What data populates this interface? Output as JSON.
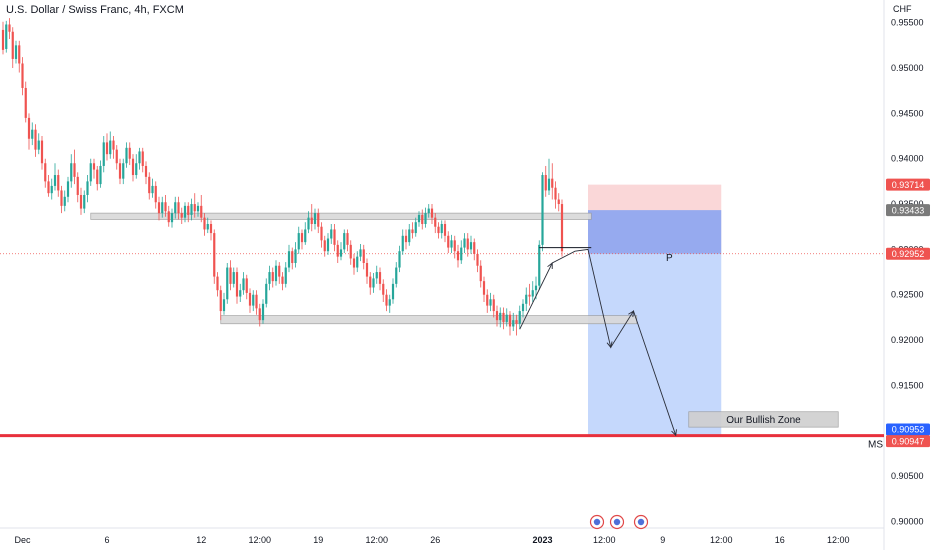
{
  "header": {
    "title": "U.S. Dollar / Swiss Franc, 4h, FXCM"
  },
  "currency_label": "CHF",
  "annotations": {
    "p_label": "P",
    "zone_label": "Our Bullish Zone",
    "ms_label": "MS"
  },
  "colors": {
    "up": "#26a69a",
    "down": "#ef5350",
    "stop_zone": "#f8c9cb",
    "target_zone": "#bbd1fc",
    "target_zone_dark": "#7d9ff5",
    "level_line": "#e8303c",
    "box_fill": "#d9d9d9",
    "box_stroke": "#9a9a9a"
  },
  "chart_data": {
    "type": "candlestick",
    "title": "U.S. Dollar / Swiss Franc, 4h, FXCM",
    "price_axis": {
      "unit": "CHF",
      "ylim": [
        0.8995,
        0.9575
      ],
      "ticks": [
        "0.95500",
        "0.95000",
        "0.94500",
        "0.94000",
        "0.93500",
        "0.93000",
        "0.92500",
        "0.92000",
        "0.91500",
        "0.91000",
        "0.90500",
        "0.90000"
      ]
    },
    "time_axis": {
      "ticks": [
        {
          "label": "Dec",
          "bar": 6
        },
        {
          "label": "6",
          "bar": 32
        },
        {
          "label": "12",
          "bar": 61
        },
        {
          "label": "12:00",
          "bar": 79
        },
        {
          "label": "19",
          "bar": 97
        },
        {
          "label": "12:00",
          "bar": 115
        },
        {
          "label": "26",
          "bar": 133
        },
        {
          "label": "2023",
          "bar": 166,
          "bold": true
        },
        {
          "label": "12:00",
          "bar": 185
        },
        {
          "label": "9",
          "bar": 203
        },
        {
          "label": "12:00",
          "bar": 221
        },
        {
          "label": "16",
          "bar": 239
        },
        {
          "label": "12:00",
          "bar": 257
        }
      ]
    },
    "price_tags": [
      {
        "label": "0.93714",
        "value": 0.93714,
        "color": "#ef5350"
      },
      {
        "label": "0.93433",
        "value": 0.93433,
        "color": "#7a7a7a"
      },
      {
        "label": "0.92952",
        "value": 0.92952,
        "color": "#ef5350"
      },
      {
        "label": "0.90953",
        "value": 0.90953,
        "color": "#2962ff"
      },
      {
        "label": "0.90947",
        "value": 0.90947,
        "color": "#ef5350"
      }
    ],
    "levels": [
      {
        "name": "MS",
        "value": 0.90947
      }
    ],
    "position": {
      "entry": 0.92952,
      "stop": 0.93714,
      "target": 0.90953,
      "reached": 0.93433,
      "start_bar": 180,
      "end_bar": 221
    },
    "zones": [
      {
        "name": "resistance",
        "from": 0.934,
        "to": 0.9333,
        "start_bar": 27,
        "end_bar": 181
      },
      {
        "name": "support",
        "from": 0.9227,
        "to": 0.9218,
        "start_bar": 67,
        "end_bar": 195
      },
      {
        "name": "Our Bullish Zone",
        "from": 0.9121,
        "to": 0.9104,
        "start_bar": 211,
        "end_bar": 257
      }
    ],
    "candles": [
      [
        0.9542,
        0.952,
        0.9551,
        0.9515
      ],
      [
        0.9521,
        0.9548,
        0.9552,
        0.9517
      ],
      [
        0.9548,
        0.954,
        0.9555,
        0.9532
      ],
      [
        0.954,
        0.951,
        0.9545,
        0.95
      ],
      [
        0.951,
        0.9525,
        0.953,
        0.9505
      ],
      [
        0.9525,
        0.9505,
        0.953,
        0.9495
      ],
      [
        0.9505,
        0.9478,
        0.9512,
        0.947
      ],
      [
        0.9478,
        0.9445,
        0.9485,
        0.944
      ],
      [
        0.9445,
        0.9422,
        0.945,
        0.941
      ],
      [
        0.9422,
        0.9432,
        0.944,
        0.9415
      ],
      [
        0.9432,
        0.941,
        0.9438,
        0.9402
      ],
      [
        0.941,
        0.942,
        0.9428,
        0.9405
      ],
      [
        0.942,
        0.9395,
        0.9425,
        0.9388
      ],
      [
        0.9395,
        0.9375,
        0.94,
        0.9368
      ],
      [
        0.9375,
        0.9362,
        0.9382,
        0.9358
      ],
      [
        0.9362,
        0.937,
        0.9378,
        0.9355
      ],
      [
        0.937,
        0.9382,
        0.9395,
        0.9365
      ],
      [
        0.9382,
        0.9365,
        0.9388,
        0.9358
      ],
      [
        0.9365,
        0.9348,
        0.937,
        0.934
      ],
      [
        0.9348,
        0.9358,
        0.9365,
        0.9342
      ],
      [
        0.9358,
        0.9375,
        0.938,
        0.9352
      ],
      [
        0.9375,
        0.9395,
        0.9405,
        0.9368
      ],
      [
        0.9395,
        0.938,
        0.941,
        0.9372
      ],
      [
        0.938,
        0.936,
        0.9385,
        0.9352
      ],
      [
        0.936,
        0.9345,
        0.9368,
        0.9338
      ],
      [
        0.9345,
        0.936,
        0.9365,
        0.934
      ],
      [
        0.936,
        0.9375,
        0.9382,
        0.9352
      ],
      [
        0.9375,
        0.9395,
        0.94,
        0.937
      ],
      [
        0.9395,
        0.9388,
        0.94,
        0.9378
      ],
      [
        0.9388,
        0.9372,
        0.9392,
        0.9365
      ],
      [
        0.9372,
        0.9392,
        0.9398,
        0.9368
      ],
      [
        0.9392,
        0.9418,
        0.9425,
        0.9385
      ],
      [
        0.9418,
        0.9405,
        0.9428,
        0.9398
      ],
      [
        0.9405,
        0.942,
        0.943,
        0.94
      ],
      [
        0.942,
        0.941,
        0.9425,
        0.94
      ],
      [
        0.941,
        0.9395,
        0.9415,
        0.9388
      ],
      [
        0.9395,
        0.9378,
        0.94,
        0.9372
      ],
      [
        0.9378,
        0.9395,
        0.94,
        0.9372
      ],
      [
        0.9395,
        0.9412,
        0.9418,
        0.939
      ],
      [
        0.9412,
        0.94,
        0.9418,
        0.9393
      ],
      [
        0.94,
        0.9382,
        0.9405,
        0.9375
      ],
      [
        0.9382,
        0.9395,
        0.9405,
        0.9378
      ],
      [
        0.9395,
        0.9408,
        0.9412,
        0.9388
      ],
      [
        0.9408,
        0.9392,
        0.9412,
        0.9385
      ],
      [
        0.9392,
        0.938,
        0.9397,
        0.9372
      ],
      [
        0.938,
        0.9362,
        0.9385,
        0.9355
      ],
      [
        0.9362,
        0.937,
        0.9378,
        0.9357
      ],
      [
        0.937,
        0.9352,
        0.9375,
        0.9345
      ],
      [
        0.9352,
        0.934,
        0.9358,
        0.9332
      ],
      [
        0.934,
        0.9352,
        0.9358,
        0.9335
      ],
      [
        0.9352,
        0.9342,
        0.936,
        0.9336
      ],
      [
        0.9342,
        0.933,
        0.9348,
        0.9325
      ],
      [
        0.933,
        0.934,
        0.9345,
        0.9324
      ],
      [
        0.934,
        0.9352,
        0.9358,
        0.9334
      ],
      [
        0.9352,
        0.934,
        0.9358,
        0.9333
      ],
      [
        0.934,
        0.9335,
        0.9346,
        0.9328
      ],
      [
        0.9335,
        0.9348,
        0.9352,
        0.933
      ],
      [
        0.9348,
        0.9338,
        0.9352,
        0.933
      ],
      [
        0.9338,
        0.935,
        0.9356,
        0.9332
      ],
      [
        0.935,
        0.9342,
        0.9362,
        0.9335
      ],
      [
        0.9342,
        0.9348,
        0.9352,
        0.9336
      ],
      [
        0.9348,
        0.9335,
        0.936,
        0.933
      ],
      [
        0.9335,
        0.9322,
        0.934,
        0.9315
      ],
      [
        0.9322,
        0.9328,
        0.9335,
        0.9318
      ],
      [
        0.9328,
        0.9318,
        0.9332,
        0.931
      ],
      [
        0.9318,
        0.927,
        0.9322,
        0.9262
      ],
      [
        0.927,
        0.9255,
        0.9275,
        0.9248
      ],
      [
        0.9255,
        0.9232,
        0.926,
        0.9222
      ],
      [
        0.9232,
        0.9245,
        0.9252,
        0.9228
      ],
      [
        0.9245,
        0.928,
        0.9285,
        0.924
      ],
      [
        0.928,
        0.9262,
        0.9288,
        0.9255
      ],
      [
        0.9262,
        0.9275,
        0.928,
        0.9258
      ],
      [
        0.9275,
        0.9248,
        0.928,
        0.924
      ],
      [
        0.9248,
        0.9255,
        0.9262,
        0.9242
      ],
      [
        0.9255,
        0.9268,
        0.9275,
        0.925
      ],
      [
        0.9268,
        0.9252,
        0.9272,
        0.9245
      ],
      [
        0.9252,
        0.9238,
        0.9257,
        0.923
      ],
      [
        0.9238,
        0.925,
        0.9255,
        0.9232
      ],
      [
        0.925,
        0.9235,
        0.9255,
        0.9228
      ],
      [
        0.9235,
        0.9222,
        0.924,
        0.9215
      ],
      [
        0.9222,
        0.924,
        0.9245,
        0.9218
      ],
      [
        0.924,
        0.9262,
        0.9268,
        0.9236
      ],
      [
        0.9262,
        0.9275,
        0.9282,
        0.9255
      ],
      [
        0.9275,
        0.9265,
        0.928,
        0.9258
      ],
      [
        0.9265,
        0.9282,
        0.9288,
        0.926
      ],
      [
        0.9282,
        0.927,
        0.9286,
        0.9262
      ],
      [
        0.927,
        0.9262,
        0.9275,
        0.9255
      ],
      [
        0.9262,
        0.928,
        0.9286,
        0.9258
      ],
      [
        0.928,
        0.9298,
        0.9305,
        0.9275
      ],
      [
        0.9298,
        0.9285,
        0.9302,
        0.9278
      ],
      [
        0.9285,
        0.93,
        0.9308,
        0.928
      ],
      [
        0.93,
        0.9318,
        0.9325,
        0.9295
      ],
      [
        0.9318,
        0.9308,
        0.9322,
        0.93
      ],
      [
        0.9308,
        0.9322,
        0.933,
        0.9305
      ],
      [
        0.9322,
        0.9335,
        0.9342,
        0.9318
      ],
      [
        0.9335,
        0.9328,
        0.935,
        0.932
      ],
      [
        0.9328,
        0.934,
        0.9345,
        0.9322
      ],
      [
        0.934,
        0.9325,
        0.9345,
        0.9318
      ],
      [
        0.9325,
        0.931,
        0.933,
        0.9302
      ],
      [
        0.931,
        0.9298,
        0.9315,
        0.9292
      ],
      [
        0.9298,
        0.9312,
        0.9318,
        0.9294
      ],
      [
        0.9312,
        0.9322,
        0.9328,
        0.9306
      ],
      [
        0.9322,
        0.9305,
        0.9328,
        0.9298
      ],
      [
        0.9305,
        0.9292,
        0.931,
        0.9285
      ],
      [
        0.9292,
        0.93,
        0.9308,
        0.9288
      ],
      [
        0.93,
        0.9318,
        0.9322,
        0.9296
      ],
      [
        0.9318,
        0.9305,
        0.9322,
        0.9298
      ],
      [
        0.9305,
        0.929,
        0.931,
        0.9283
      ],
      [
        0.929,
        0.928,
        0.9295,
        0.9272
      ],
      [
        0.928,
        0.9292,
        0.9298,
        0.9275
      ],
      [
        0.9292,
        0.93,
        0.9306,
        0.9287
      ],
      [
        0.93,
        0.9285,
        0.9305,
        0.9278
      ],
      [
        0.9285,
        0.927,
        0.929,
        0.9262
      ],
      [
        0.927,
        0.9258,
        0.9275,
        0.925
      ],
      [
        0.9258,
        0.9268,
        0.9274,
        0.9252
      ],
      [
        0.9268,
        0.9275,
        0.9282,
        0.9262
      ],
      [
        0.9275,
        0.9262,
        0.928,
        0.9255
      ],
      [
        0.9262,
        0.925,
        0.9267,
        0.9242
      ],
      [
        0.925,
        0.9238,
        0.9256,
        0.9232
      ],
      [
        0.9238,
        0.9245,
        0.925,
        0.923
      ],
      [
        0.9245,
        0.9262,
        0.9268,
        0.924
      ],
      [
        0.9262,
        0.928,
        0.9286,
        0.9258
      ],
      [
        0.928,
        0.9298,
        0.9304,
        0.9275
      ],
      [
        0.9298,
        0.9315,
        0.9322,
        0.9294
      ],
      [
        0.9315,
        0.9308,
        0.9322,
        0.93
      ],
      [
        0.9308,
        0.9322,
        0.9328,
        0.9304
      ],
      [
        0.9322,
        0.9318,
        0.933,
        0.9312
      ],
      [
        0.9318,
        0.933,
        0.9335,
        0.9314
      ],
      [
        0.933,
        0.9338,
        0.9342,
        0.9325
      ],
      [
        0.9338,
        0.9328,
        0.9344,
        0.9322
      ],
      [
        0.9328,
        0.934,
        0.9346,
        0.9324
      ],
      [
        0.934,
        0.9345,
        0.935,
        0.9335
      ],
      [
        0.9345,
        0.9335,
        0.935,
        0.9328
      ],
      [
        0.9335,
        0.9325,
        0.934,
        0.9318
      ],
      [
        0.9325,
        0.9318,
        0.933,
        0.9312
      ],
      [
        0.9318,
        0.9328,
        0.9332,
        0.9312
      ],
      [
        0.9328,
        0.9315,
        0.9332,
        0.9308
      ],
      [
        0.9315,
        0.9302,
        0.932,
        0.9296
      ],
      [
        0.9302,
        0.931,
        0.9316,
        0.9296
      ],
      [
        0.931,
        0.9298,
        0.9315,
        0.929
      ],
      [
        0.9298,
        0.9288,
        0.9305,
        0.928
      ],
      [
        0.9288,
        0.9302,
        0.931,
        0.9284
      ],
      [
        0.9302,
        0.9312,
        0.9318,
        0.9296
      ],
      [
        0.9312,
        0.93,
        0.9318,
        0.9292
      ],
      [
        0.93,
        0.9308,
        0.9315,
        0.9295
      ],
      [
        0.9308,
        0.9295,
        0.9312,
        0.9288
      ],
      [
        0.9295,
        0.9282,
        0.93,
        0.9275
      ],
      [
        0.9282,
        0.9265,
        0.9288,
        0.9258
      ],
      [
        0.9265,
        0.925,
        0.927,
        0.9242
      ],
      [
        0.925,
        0.9238,
        0.9256,
        0.923
      ],
      [
        0.9238,
        0.9245,
        0.9252,
        0.9232
      ],
      [
        0.9245,
        0.9232,
        0.925,
        0.9225
      ],
      [
        0.9232,
        0.9222,
        0.9238,
        0.9215
      ],
      [
        0.9222,
        0.923,
        0.9236,
        0.9214
      ],
      [
        0.923,
        0.922,
        0.9236,
        0.9212
      ],
      [
        0.922,
        0.9228,
        0.9235,
        0.9215
      ],
      [
        0.9228,
        0.9215,
        0.9232,
        0.9205
      ],
      [
        0.9215,
        0.9222,
        0.923,
        0.921
      ],
      [
        0.9222,
        0.9218,
        0.9228,
        0.9205
      ],
      [
        0.9218,
        0.9232,
        0.9238,
        0.9212
      ],
      [
        0.9232,
        0.924,
        0.9245,
        0.9225
      ],
      [
        0.924,
        0.925,
        0.9258,
        0.9232
      ],
      [
        0.925,
        0.9248,
        0.9262,
        0.9238
      ],
      [
        0.9248,
        0.9255,
        0.9265,
        0.9242
      ],
      [
        0.9255,
        0.926,
        0.927,
        0.9245
      ],
      [
        0.926,
        0.9305,
        0.931,
        0.9255
      ],
      [
        0.9305,
        0.9382,
        0.9385,
        0.9298
      ],
      [
        0.9382,
        0.9365,
        0.9392,
        0.9358
      ],
      [
        0.9365,
        0.9378,
        0.94,
        0.936
      ],
      [
        0.9378,
        0.9368,
        0.9395,
        0.9355
      ],
      [
        0.9368,
        0.9355,
        0.9375,
        0.9345
      ],
      [
        0.9355,
        0.935,
        0.9362,
        0.9342
      ],
      [
        0.935,
        0.9298,
        0.9355,
        0.9292
      ]
    ]
  }
}
